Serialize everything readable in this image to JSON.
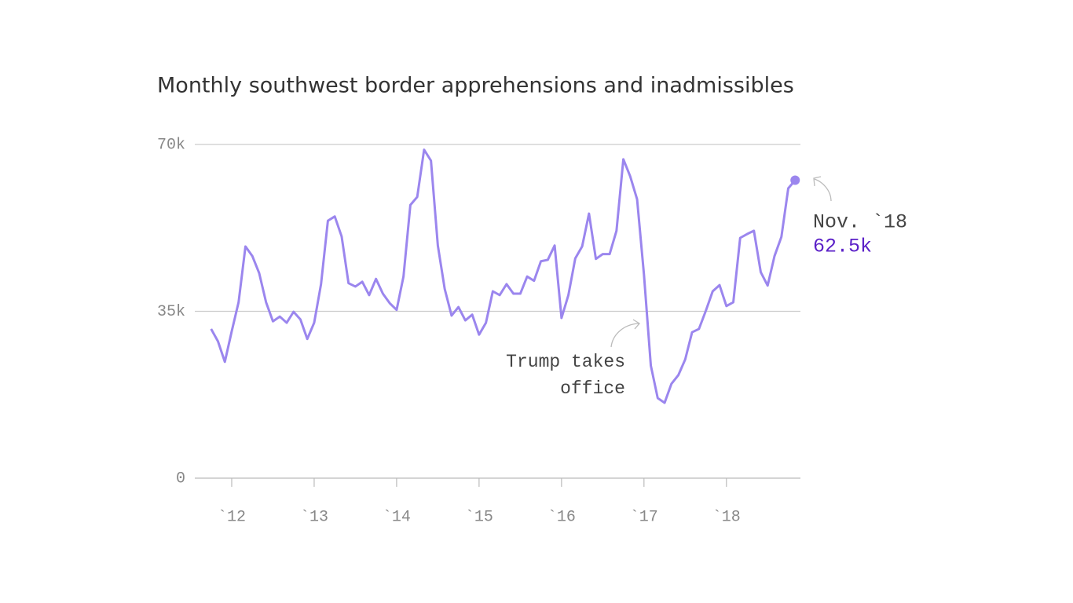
{
  "chart_data": {
    "type": "line",
    "title": "Monthly southwest border apprehensions and inadmissibles",
    "x": [
      "2011-10",
      "2011-11",
      "2011-12",
      "2012-01",
      "2012-02",
      "2012-03",
      "2012-04",
      "2012-05",
      "2012-06",
      "2012-07",
      "2012-08",
      "2012-09",
      "2012-10",
      "2012-11",
      "2012-12",
      "2013-01",
      "2013-02",
      "2013-03",
      "2013-04",
      "2013-05",
      "2013-06",
      "2013-07",
      "2013-08",
      "2013-09",
      "2013-10",
      "2013-11",
      "2013-12",
      "2014-01",
      "2014-02",
      "2014-03",
      "2014-04",
      "2014-05",
      "2014-06",
      "2014-07",
      "2014-08",
      "2014-09",
      "2014-10",
      "2014-11",
      "2014-12",
      "2015-01",
      "2015-02",
      "2015-03",
      "2015-04",
      "2015-05",
      "2015-06",
      "2015-07",
      "2015-08",
      "2015-09",
      "2015-10",
      "2015-11",
      "2015-12",
      "2016-01",
      "2016-02",
      "2016-03",
      "2016-04",
      "2016-05",
      "2016-06",
      "2016-07",
      "2016-08",
      "2016-09",
      "2016-10",
      "2016-11",
      "2016-12",
      "2017-01",
      "2017-02",
      "2017-03",
      "2017-04",
      "2017-05",
      "2017-06",
      "2017-07",
      "2017-08",
      "2017-09",
      "2017-10",
      "2017-11",
      "2017-12",
      "2018-01",
      "2018-02",
      "2018-03",
      "2018-04",
      "2018-05",
      "2018-06",
      "2018-07",
      "2018-08",
      "2018-09",
      "2018-10",
      "2018-11"
    ],
    "series": [
      {
        "color": "#9b86ee",
        "values": [
          31300,
          28700,
          24400,
          30800,
          36900,
          48600,
          46600,
          43000,
          36900,
          32900,
          33900,
          32600,
          34900,
          33300,
          29200,
          32600,
          40700,
          54000,
          54900,
          50700,
          40900,
          40200,
          41200,
          38400,
          41800,
          38700,
          36700,
          35300,
          42300,
          57300,
          59000,
          68900,
          66600,
          48800,
          39700,
          34100,
          35900,
          33100,
          34300,
          30100,
          32600,
          39200,
          38400,
          40700,
          38700,
          38700,
          42300,
          41400,
          45500,
          45800,
          48800,
          33600,
          38400,
          46100,
          48600,
          55500,
          46000,
          47000,
          47000,
          51900,
          66900,
          63300,
          58500,
          42700,
          23600,
          16800,
          15800,
          19800,
          21600,
          24900,
          30600,
          31300,
          35100,
          39200,
          40500,
          36100,
          36900,
          50400,
          51200,
          51900,
          43200,
          40400,
          46600,
          50600,
          60800,
          62500
        ],
        "value_labels": [
          null,
          null,
          null,
          null,
          null,
          null,
          null,
          null,
          null,
          null,
          null,
          null,
          null,
          null,
          null,
          null,
          null,
          null,
          null,
          null,
          null,
          null,
          null,
          null,
          null,
          null,
          null,
          null,
          null,
          null,
          null,
          null,
          null,
          null,
          null,
          null,
          null,
          null,
          null,
          null,
          null,
          null,
          null,
          null,
          null,
          null,
          null,
          null,
          null,
          null,
          null,
          null,
          null,
          null,
          null,
          null,
          null,
          null,
          null,
          null,
          null,
          null,
          null,
          null,
          null,
          null,
          null,
          null,
          null,
          null,
          null,
          null,
          null,
          null,
          null,
          null,
          null,
          null,
          null,
          null,
          null,
          null,
          null,
          null,
          null,
          "62.5k"
        ],
        "value_label_color": "#5a1fc7"
      }
    ],
    "xlim": [
      "2011-07",
      "2018-12"
    ],
    "xticks": [
      {
        "value": "2012-01",
        "label": "`12"
      },
      {
        "value": "2013-01",
        "label": "`13"
      },
      {
        "value": "2014-01",
        "label": "`14"
      },
      {
        "value": "2015-01",
        "label": "`15"
      },
      {
        "value": "2016-01",
        "label": "`16"
      },
      {
        "value": "2017-01",
        "label": "`17"
      },
      {
        "value": "2018-01",
        "label": "`18"
      }
    ],
    "ylim": [
      0,
      70000
    ],
    "yticks": [
      0,
      {
        "value": 35000,
        "label": "35k"
      },
      {
        "value": 70000,
        "label": "70k"
      }
    ],
    "grid": true,
    "annotations": [
      {
        "x": "2018-11",
        "lines": [
          "Nov. `18"
        ]
      },
      {
        "x": "2017-01",
        "lines": [
          "Trump takes",
          "office"
        ]
      }
    ]
  }
}
